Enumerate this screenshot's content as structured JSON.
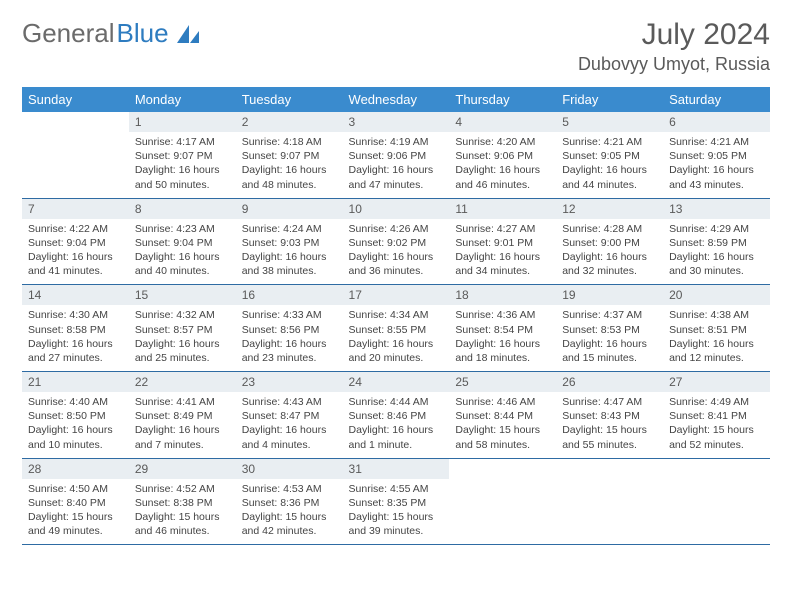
{
  "brand": {
    "part1": "General",
    "part2": "Blue"
  },
  "title": "July 2024",
  "location": "Dubovyy Umyot, Russia",
  "header_bg": "#3a8bce",
  "header_text": "#ffffff",
  "daynum_bg": "#e9eef2",
  "border_color": "#2e6ba3",
  "weekdays": [
    "Sunday",
    "Monday",
    "Tuesday",
    "Wednesday",
    "Thursday",
    "Friday",
    "Saturday"
  ],
  "weeks": [
    [
      null,
      {
        "n": "1",
        "sr": "4:17 AM",
        "ss": "9:07 PM",
        "dl": "16 hours and 50 minutes."
      },
      {
        "n": "2",
        "sr": "4:18 AM",
        "ss": "9:07 PM",
        "dl": "16 hours and 48 minutes."
      },
      {
        "n": "3",
        "sr": "4:19 AM",
        "ss": "9:06 PM",
        "dl": "16 hours and 47 minutes."
      },
      {
        "n": "4",
        "sr": "4:20 AM",
        "ss": "9:06 PM",
        "dl": "16 hours and 46 minutes."
      },
      {
        "n": "5",
        "sr": "4:21 AM",
        "ss": "9:05 PM",
        "dl": "16 hours and 44 minutes."
      },
      {
        "n": "6",
        "sr": "4:21 AM",
        "ss": "9:05 PM",
        "dl": "16 hours and 43 minutes."
      }
    ],
    [
      {
        "n": "7",
        "sr": "4:22 AM",
        "ss": "9:04 PM",
        "dl": "16 hours and 41 minutes."
      },
      {
        "n": "8",
        "sr": "4:23 AM",
        "ss": "9:04 PM",
        "dl": "16 hours and 40 minutes."
      },
      {
        "n": "9",
        "sr": "4:24 AM",
        "ss": "9:03 PM",
        "dl": "16 hours and 38 minutes."
      },
      {
        "n": "10",
        "sr": "4:26 AM",
        "ss": "9:02 PM",
        "dl": "16 hours and 36 minutes."
      },
      {
        "n": "11",
        "sr": "4:27 AM",
        "ss": "9:01 PM",
        "dl": "16 hours and 34 minutes."
      },
      {
        "n": "12",
        "sr": "4:28 AM",
        "ss": "9:00 PM",
        "dl": "16 hours and 32 minutes."
      },
      {
        "n": "13",
        "sr": "4:29 AM",
        "ss": "8:59 PM",
        "dl": "16 hours and 30 minutes."
      }
    ],
    [
      {
        "n": "14",
        "sr": "4:30 AM",
        "ss": "8:58 PM",
        "dl": "16 hours and 27 minutes."
      },
      {
        "n": "15",
        "sr": "4:32 AM",
        "ss": "8:57 PM",
        "dl": "16 hours and 25 minutes."
      },
      {
        "n": "16",
        "sr": "4:33 AM",
        "ss": "8:56 PM",
        "dl": "16 hours and 23 minutes."
      },
      {
        "n": "17",
        "sr": "4:34 AM",
        "ss": "8:55 PM",
        "dl": "16 hours and 20 minutes."
      },
      {
        "n": "18",
        "sr": "4:36 AM",
        "ss": "8:54 PM",
        "dl": "16 hours and 18 minutes."
      },
      {
        "n": "19",
        "sr": "4:37 AM",
        "ss": "8:53 PM",
        "dl": "16 hours and 15 minutes."
      },
      {
        "n": "20",
        "sr": "4:38 AM",
        "ss": "8:51 PM",
        "dl": "16 hours and 12 minutes."
      }
    ],
    [
      {
        "n": "21",
        "sr": "4:40 AM",
        "ss": "8:50 PM",
        "dl": "16 hours and 10 minutes."
      },
      {
        "n": "22",
        "sr": "4:41 AM",
        "ss": "8:49 PM",
        "dl": "16 hours and 7 minutes."
      },
      {
        "n": "23",
        "sr": "4:43 AM",
        "ss": "8:47 PM",
        "dl": "16 hours and 4 minutes."
      },
      {
        "n": "24",
        "sr": "4:44 AM",
        "ss": "8:46 PM",
        "dl": "16 hours and 1 minute."
      },
      {
        "n": "25",
        "sr": "4:46 AM",
        "ss": "8:44 PM",
        "dl": "15 hours and 58 minutes."
      },
      {
        "n": "26",
        "sr": "4:47 AM",
        "ss": "8:43 PM",
        "dl": "15 hours and 55 minutes."
      },
      {
        "n": "27",
        "sr": "4:49 AM",
        "ss": "8:41 PM",
        "dl": "15 hours and 52 minutes."
      }
    ],
    [
      {
        "n": "28",
        "sr": "4:50 AM",
        "ss": "8:40 PM",
        "dl": "15 hours and 49 minutes."
      },
      {
        "n": "29",
        "sr": "4:52 AM",
        "ss": "8:38 PM",
        "dl": "15 hours and 46 minutes."
      },
      {
        "n": "30",
        "sr": "4:53 AM",
        "ss": "8:36 PM",
        "dl": "15 hours and 42 minutes."
      },
      {
        "n": "31",
        "sr": "4:55 AM",
        "ss": "8:35 PM",
        "dl": "15 hours and 39 minutes."
      },
      null,
      null,
      null
    ]
  ]
}
